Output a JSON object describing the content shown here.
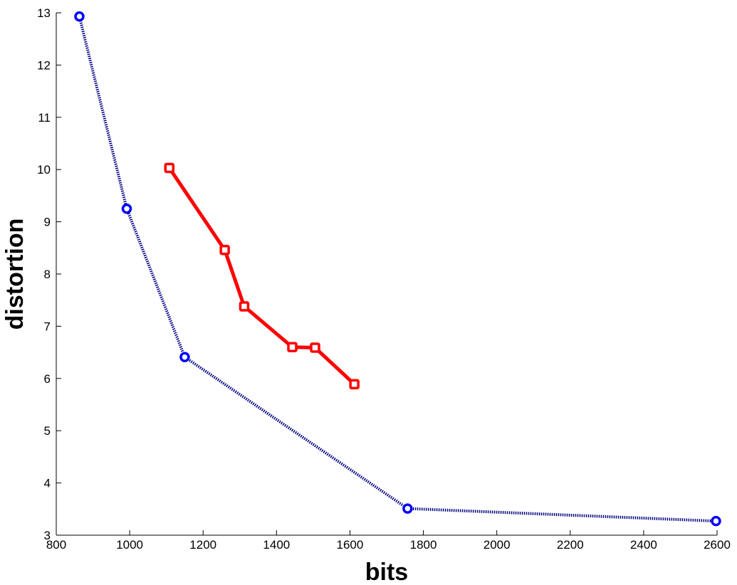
{
  "chart_data": {
    "type": "line",
    "title": "",
    "xlabel": "bits",
    "ylabel": "distortion",
    "xlim": [
      800,
      2600
    ],
    "ylim": [
      3,
      13
    ],
    "xticks": [
      800,
      1000,
      1200,
      1400,
      1600,
      1800,
      2000,
      2200,
      2400,
      2600
    ],
    "yticks": [
      3,
      4,
      5,
      6,
      7,
      8,
      9,
      10,
      11,
      12,
      13
    ],
    "grid": false,
    "legend": "none",
    "series": [
      {
        "color": "#0000ff",
        "line_color": "#000080",
        "line_style": "dotted",
        "marker": "circle",
        "x": [
          863,
          992,
          1150,
          1757,
          2597
        ],
        "y": [
          12.93,
          9.25,
          6.41,
          3.51,
          3.27
        ]
      },
      {
        "color": "#ff0000",
        "line_color": "#ff0000",
        "line_style": "solid",
        "marker": "square",
        "x": [
          1108,
          1259,
          1312,
          1443,
          1505,
          1612
        ],
        "y": [
          10.03,
          8.46,
          7.38,
          6.6,
          6.59,
          5.89
        ]
      }
    ]
  }
}
